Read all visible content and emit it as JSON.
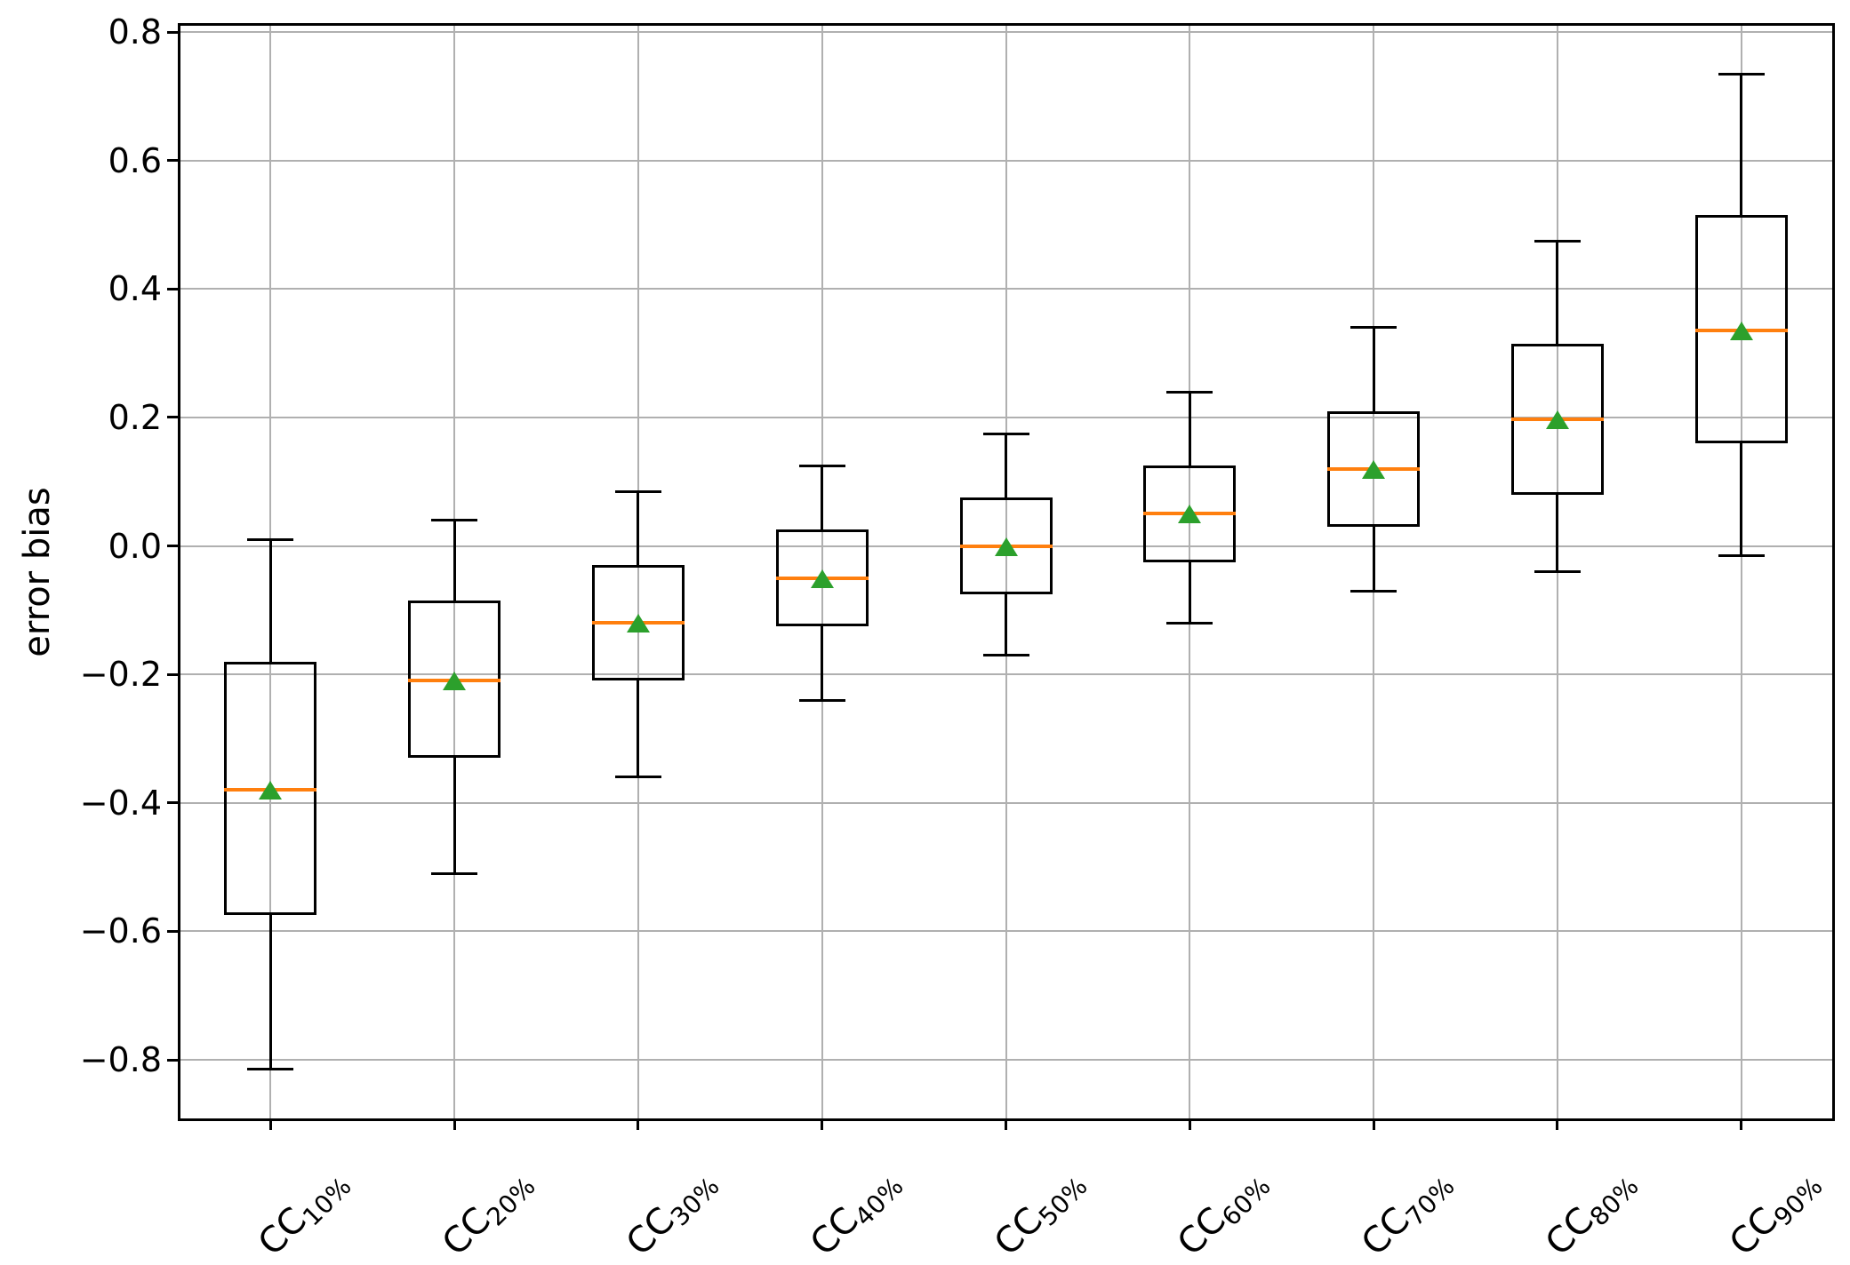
{
  "chart_data": {
    "type": "box",
    "title": "",
    "xlabel": "",
    "ylabel": "error bias",
    "ylim": [
      -0.8925,
      0.8125
    ],
    "grid": true,
    "legend_position": "none",
    "yticks": [
      {
        "value": 0.8,
        "label": "0.8"
      },
      {
        "value": 0.6,
        "label": "0.6"
      },
      {
        "value": 0.4,
        "label": "0.4"
      },
      {
        "value": 0.2,
        "label": "0.2"
      },
      {
        "value": 0.0,
        "label": "0.0"
      },
      {
        "value": -0.2,
        "label": "−0.2"
      },
      {
        "value": -0.4,
        "label": "−0.4"
      },
      {
        "value": -0.6,
        "label": "−0.6"
      },
      {
        "value": -0.8,
        "label": "−0.8"
      }
    ],
    "categories": [
      {
        "prefix": "CC",
        "sub": "10%",
        "label": "CC_10%"
      },
      {
        "prefix": "CC",
        "sub": "20%",
        "label": "CC_20%"
      },
      {
        "prefix": "CC",
        "sub": "30%",
        "label": "CC_30%"
      },
      {
        "prefix": "CC",
        "sub": "40%",
        "label": "CC_40%"
      },
      {
        "prefix": "CC",
        "sub": "50%",
        "label": "CC_50%"
      },
      {
        "prefix": "CC",
        "sub": "60%",
        "label": "CC_60%"
      },
      {
        "prefix": "CC",
        "sub": "70%",
        "label": "CC_70%"
      },
      {
        "prefix": "CC",
        "sub": "80%",
        "label": "CC_80%"
      },
      {
        "prefix": "CC",
        "sub": "90%",
        "label": "CC_90%"
      }
    ],
    "boxes": [
      {
        "whislo": -0.815,
        "q1": -0.575,
        "med": -0.38,
        "mean": -0.38,
        "q3": -0.18,
        "whishi": 0.01
      },
      {
        "whislo": -0.51,
        "q1": -0.33,
        "med": -0.21,
        "mean": -0.21,
        "q3": -0.085,
        "whishi": 0.04
      },
      {
        "whislo": -0.36,
        "q1": -0.21,
        "med": -0.12,
        "mean": -0.12,
        "q3": -0.03,
        "whishi": 0.085
      },
      {
        "whislo": -0.24,
        "q1": -0.125,
        "med": -0.05,
        "mean": -0.05,
        "q3": 0.025,
        "whishi": 0.125
      },
      {
        "whislo": -0.17,
        "q1": -0.075,
        "med": 0.0,
        "mean": 0.0,
        "q3": 0.075,
        "whishi": 0.175
      },
      {
        "whislo": -0.12,
        "q1": -0.025,
        "med": 0.05,
        "mean": 0.05,
        "q3": 0.125,
        "whishi": 0.24
      },
      {
        "whislo": -0.07,
        "q1": 0.03,
        "med": 0.12,
        "mean": 0.12,
        "q3": 0.21,
        "whishi": 0.34
      },
      {
        "whislo": -0.04,
        "q1": 0.08,
        "med": 0.197,
        "mean": 0.197,
        "q3": 0.315,
        "whishi": 0.475
      },
      {
        "whislo": -0.015,
        "q1": 0.16,
        "med": 0.335,
        "mean": 0.335,
        "q3": 0.515,
        "whishi": 0.735
      }
    ],
    "colors": {
      "median": "#ff7f0e",
      "mean": "#2ca02c",
      "line": "#000000",
      "grid": "#b0b0b0",
      "background": "#ffffff"
    }
  }
}
